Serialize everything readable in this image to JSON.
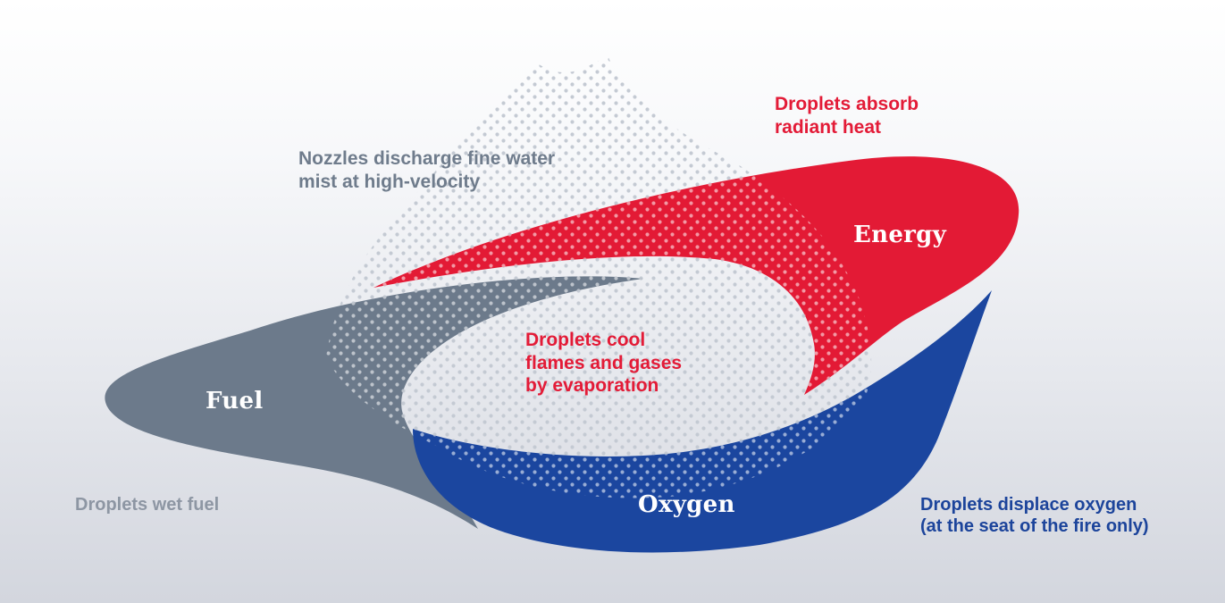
{
  "segments": {
    "fuel": "Fuel",
    "energy": "Energy",
    "oxygen": "Oxygen"
  },
  "callouts": {
    "nozzles": [
      "Nozzles discharge fine water",
      "mist at high-velocity"
    ],
    "radiant_heat": [
      "Droplets absorb",
      "radiant heat"
    ],
    "cool_flames": [
      "Droplets cool",
      "flames and gases",
      "by evaporation"
    ],
    "wet_fuel": [
      "Droplets wet fuel"
    ],
    "displace_oxygen": [
      "Droplets displace oxygen",
      "(at the seat of the fire only)"
    ]
  },
  "colors": {
    "fuel": "#6c7a8b",
    "energy": "#e31a35",
    "oxygen": "#1b469f",
    "mist_dots": "#c4cad3",
    "red_text": "#e31b37",
    "blue_text": "#1c449b",
    "gray_text": "#6f7c8c"
  }
}
